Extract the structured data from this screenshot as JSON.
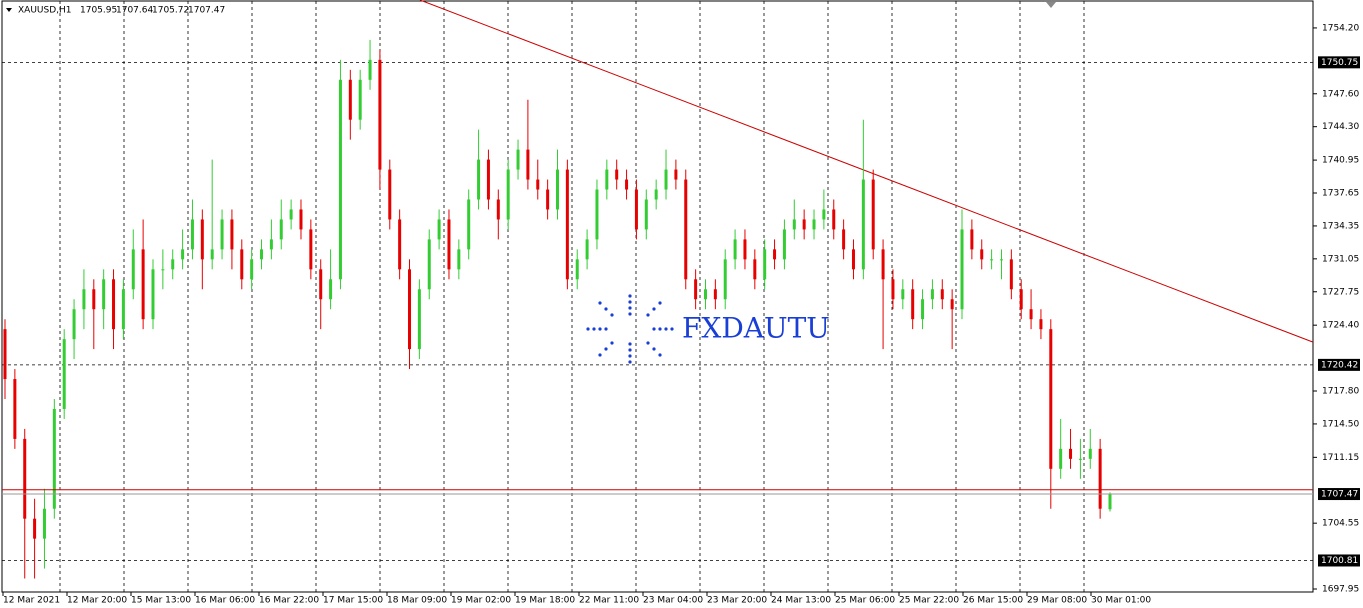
{
  "chart_data": {
    "type": "candlestick",
    "symbol": "XAUUSD,H1",
    "header_ohlc": [
      1705.95,
      1707.64,
      1705.72,
      1707.47
    ],
    "watermark": "FXDAUTU",
    "up_color": "#33cc33",
    "down_color": "#e60000",
    "ylim": [
      1697.65,
      1757.0
    ],
    "yticks": [
      {
        "value": 1754.2,
        "label": "1754.20"
      },
      {
        "value": 1747.6,
        "label": "1747.60"
      },
      {
        "value": 1744.3,
        "label": "1744.30"
      },
      {
        "value": 1740.95,
        "label": "1740.95"
      },
      {
        "value": 1737.65,
        "label": "1737.65"
      },
      {
        "value": 1734.35,
        "label": "1734.35"
      },
      {
        "value": 1731.05,
        "label": "1731.05"
      },
      {
        "value": 1727.75,
        "label": "1727.75"
      },
      {
        "value": 1724.4,
        "label": "1724.40"
      },
      {
        "value": 1717.8,
        "label": "1717.80"
      },
      {
        "value": 1714.5,
        "label": "1714.50"
      },
      {
        "value": 1711.15,
        "label": "1711.15"
      },
      {
        "value": 1704.55,
        "label": "1704.55"
      },
      {
        "value": 1697.95,
        "label": "1697.95"
      }
    ],
    "x_labels": [
      "12 Mar 2021",
      "12 Mar 20:00",
      "15 Mar 13:00",
      "16 Mar 06:00",
      "16 Mar 22:00",
      "17 Mar 15:00",
      "18 Mar 09:00",
      "19 Mar 02:00",
      "19 Mar 18:00",
      "22 Mar 11:00",
      "23 Mar 04:00",
      "23 Mar 20:00",
      "24 Mar 13:00",
      "25 Mar 06:00",
      "25 Mar 22:00",
      "26 Mar 15:00",
      "29 Mar 08:00",
      "30 Mar 01:00"
    ],
    "levels": [
      {
        "value": 1750.75,
        "label": "1750.75"
      },
      {
        "value": 1720.42,
        "label": "1720.42"
      },
      {
        "value": 1700.81,
        "label": "1700.81"
      }
    ],
    "price_line": {
      "value": 1707.47,
      "label": "1707.47",
      "color": "#999999"
    },
    "ask_line": {
      "value": 1707.9,
      "color": "#cc0000"
    },
    "trendline": {
      "start": 1757.0,
      "end": 1722.7,
      "color": "#cc0000"
    },
    "candles": [
      [
        1724,
        1725,
        1717,
        1719
      ],
      [
        1719,
        1720,
        1712,
        1713
      ],
      [
        1713,
        1714,
        1699,
        1705
      ],
      [
        1705,
        1707,
        1699,
        1703
      ],
      [
        1703,
        1708,
        1700,
        1706
      ],
      [
        1706,
        1717,
        1705,
        1716
      ],
      [
        1716,
        1724,
        1715,
        1723
      ],
      [
        1723,
        1727,
        1721,
        1726
      ],
      [
        1726,
        1730,
        1724,
        1728
      ],
      [
        1728,
        1729,
        1722,
        1726
      ],
      [
        1726,
        1730,
        1724,
        1729
      ],
      [
        1729,
        1730,
        1722,
        1724
      ],
      [
        1724,
        1729,
        1723,
        1728
      ],
      [
        1728,
        1734,
        1727,
        1732
      ],
      [
        1732,
        1735,
        1724,
        1725
      ],
      [
        1725,
        1731,
        1724,
        1730
      ],
      [
        1730,
        1732,
        1728,
        1730
      ],
      [
        1730,
        1732,
        1729,
        1731
      ],
      [
        1731,
        1734,
        1730,
        1732
      ],
      [
        1732,
        1737,
        1731,
        1735
      ],
      [
        1735,
        1736,
        1728,
        1731
      ],
      [
        1731,
        1741,
        1730,
        1732
      ],
      [
        1732,
        1736,
        1731,
        1735
      ],
      [
        1735,
        1736,
        1730,
        1732
      ],
      [
        1732,
        1733,
        1728,
        1729
      ],
      [
        1729,
        1732,
        1728,
        1731
      ],
      [
        1731,
        1733,
        1730,
        1732
      ],
      [
        1732,
        1735,
        1731,
        1733
      ],
      [
        1733,
        1737,
        1732,
        1735
      ],
      [
        1735,
        1737,
        1734,
        1736
      ],
      [
        1736,
        1737,
        1733,
        1734
      ],
      [
        1734,
        1735,
        1729,
        1730
      ],
      [
        1730,
        1731,
        1724,
        1727
      ],
      [
        1727,
        1732,
        1726,
        1729
      ],
      [
        1729,
        1751,
        1728,
        1749
      ],
      [
        1749,
        1750,
        1743,
        1745
      ],
      [
        1745,
        1750,
        1744,
        1749
      ],
      [
        1749,
        1753,
        1748,
        1751
      ],
      [
        1751,
        1752,
        1738,
        1740
      ],
      [
        1740,
        1741,
        1734,
        1735
      ],
      [
        1735,
        1736,
        1729,
        1730
      ],
      [
        1730,
        1731,
        1720,
        1722
      ],
      [
        1722,
        1729,
        1721,
        1728
      ],
      [
        1728,
        1734,
        1727,
        1733
      ],
      [
        1733,
        1736,
        1732,
        1735
      ],
      [
        1735,
        1736,
        1729,
        1730
      ],
      [
        1730,
        1733,
        1729,
        1732
      ],
      [
        1732,
        1738,
        1731,
        1737
      ],
      [
        1737,
        1744,
        1736,
        1741
      ],
      [
        1741,
        1742,
        1736,
        1737
      ],
      [
        1737,
        1738,
        1733,
        1735
      ],
      [
        1735,
        1741,
        1734,
        1740
      ],
      [
        1740,
        1743,
        1739,
        1742
      ],
      [
        1742,
        1747,
        1738,
        1739
      ],
      [
        1739,
        1741,
        1737,
        1738
      ],
      [
        1738,
        1739,
        1735,
        1736
      ],
      [
        1736,
        1742,
        1735,
        1740
      ],
      [
        1740,
        1741,
        1728,
        1729
      ],
      [
        1729,
        1732,
        1728,
        1731
      ],
      [
        1731,
        1734,
        1730,
        1733
      ],
      [
        1733,
        1739,
        1732,
        1738
      ],
      [
        1738,
        1741,
        1737,
        1740
      ],
      [
        1740,
        1741,
        1738,
        1739
      ],
      [
        1739,
        1740,
        1737,
        1738
      ],
      [
        1738,
        1739,
        1733,
        1734
      ],
      [
        1734,
        1738,
        1733,
        1737
      ],
      [
        1737,
        1739,
        1736,
        1738
      ],
      [
        1738,
        1742,
        1737,
        1740
      ],
      [
        1740,
        1741,
        1738,
        1739
      ],
      [
        1739,
        1740,
        1728,
        1729
      ],
      [
        1729,
        1730,
        1726,
        1727
      ],
      [
        1727,
        1729,
        1726,
        1728
      ],
      [
        1728,
        1729,
        1726,
        1727
      ],
      [
        1727,
        1732,
        1726,
        1731
      ],
      [
        1731,
        1734,
        1730,
        1733
      ],
      [
        1733,
        1734,
        1730,
        1731
      ],
      [
        1731,
        1732,
        1728,
        1729
      ],
      [
        1729,
        1733,
        1728,
        1732
      ],
      [
        1732,
        1733,
        1730,
        1731
      ],
      [
        1731,
        1735,
        1730,
        1734
      ],
      [
        1734,
        1737,
        1733,
        1735
      ],
      [
        1735,
        1736,
        1733,
        1734
      ],
      [
        1734,
        1736,
        1733,
        1735
      ],
      [
        1735,
        1738,
        1734,
        1736
      ],
      [
        1736,
        1737,
        1733,
        1734
      ],
      [
        1734,
        1735,
        1731,
        1732
      ],
      [
        1732,
        1733,
        1729,
        1730
      ],
      [
        1730,
        1745,
        1729,
        1739
      ],
      [
        1739,
        1740,
        1731,
        1732
      ],
      [
        1732,
        1733,
        1722,
        1729
      ],
      [
        1729,
        1730,
        1726,
        1727
      ],
      [
        1727,
        1729,
        1726,
        1728
      ],
      [
        1728,
        1729,
        1724,
        1725
      ],
      [
        1725,
        1728,
        1724,
        1727
      ],
      [
        1727,
        1729,
        1726,
        1728
      ],
      [
        1728,
        1729,
        1726,
        1727
      ],
      [
        1727,
        1728,
        1722,
        1726
      ],
      [
        1726,
        1736,
        1725,
        1734
      ],
      [
        1734,
        1735,
        1731,
        1732
      ],
      [
        1732,
        1733,
        1730,
        1731
      ],
      [
        1731,
        1732,
        1730,
        1731
      ],
      [
        1731,
        1732,
        1729,
        1731
      ],
      [
        1731,
        1732,
        1727,
        1728
      ],
      [
        1728,
        1729,
        1725,
        1726
      ],
      [
        1726,
        1728,
        1724,
        1725
      ],
      [
        1725,
        1726,
        1723,
        1724
      ],
      [
        1724,
        1725,
        1706,
        1710
      ],
      [
        1710,
        1715,
        1709,
        1712
      ],
      [
        1712,
        1714,
        1710,
        1711
      ],
      [
        1711,
        1713,
        1709,
        1711
      ],
      [
        1711,
        1714,
        1710,
        1712
      ],
      [
        1712,
        1713,
        1705,
        1706
      ],
      [
        1705.95,
        1707.64,
        1705.72,
        1707.47
      ]
    ]
  }
}
